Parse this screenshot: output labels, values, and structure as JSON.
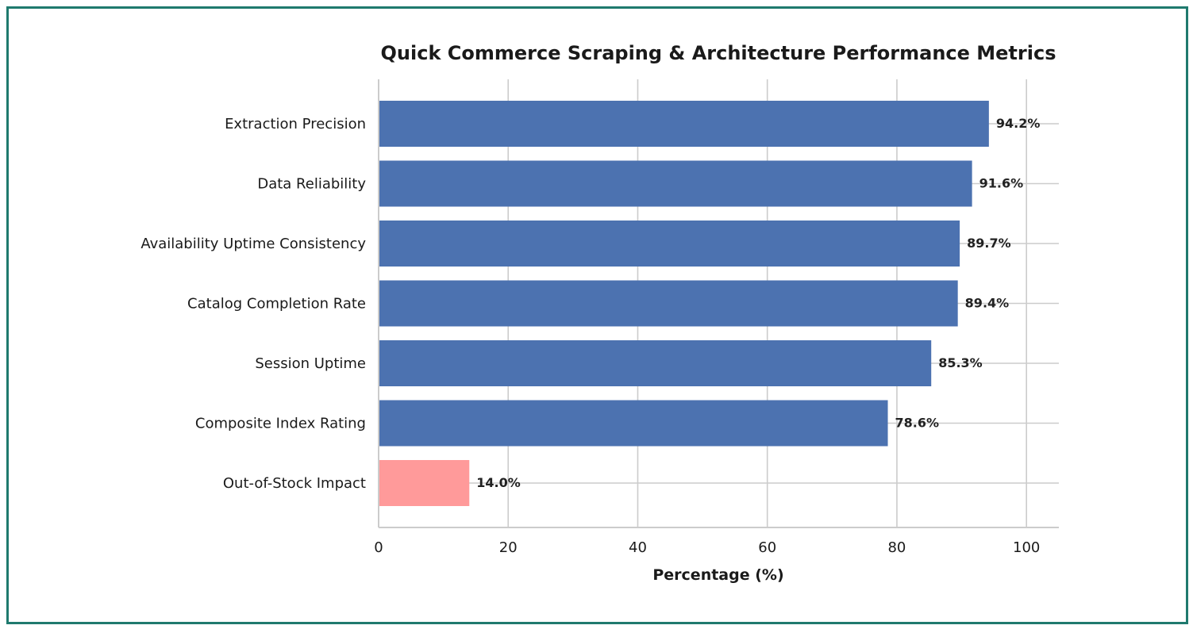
{
  "chart_data": {
    "type": "bar",
    "orientation": "horizontal",
    "title": "Quick Commerce Scraping & Architecture Performance Metrics",
    "xlabel": "Percentage (%)",
    "ylabel": "",
    "xlim": [
      0,
      105
    ],
    "xticks": [
      0,
      20,
      40,
      60,
      80,
      100
    ],
    "grid": true,
    "categories": [
      "Extraction Precision",
      "Data Reliability",
      "Availability Uptime Consistency",
      "Catalog Completion Rate",
      "Session Uptime",
      "Composite Index Rating",
      "Out-of-Stock Impact"
    ],
    "values": [
      94.2,
      91.6,
      89.7,
      89.4,
      85.3,
      78.6,
      14.0
    ],
    "value_labels": [
      "94.2%",
      "91.6%",
      "89.7%",
      "89.4%",
      "85.3%",
      "78.6%",
      "14.0%"
    ],
    "colors": [
      "#4c72b0",
      "#4c72b0",
      "#4c72b0",
      "#4c72b0",
      "#4c72b0",
      "#4c72b0",
      "#ff9a9a"
    ]
  },
  "colors": {
    "frame_border": "#1f7a6e",
    "grid": "#cccccc",
    "axis": "#cccccc"
  }
}
